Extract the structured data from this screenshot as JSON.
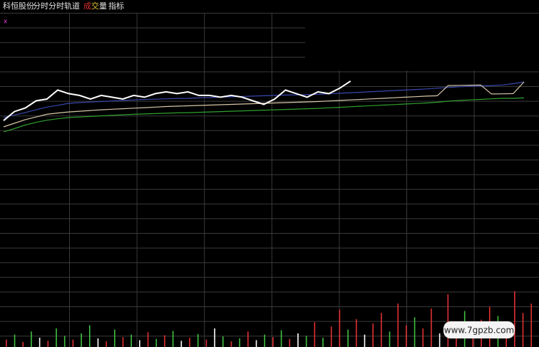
{
  "header": {
    "stock": "科恒股份",
    "tabs": [
      "分时",
      "分时轨道"
    ],
    "volume_tab": [
      "成",
      "交",
      "量"
    ],
    "indicator_tab": "指标",
    "marker": "x",
    "watermark": "www.7gpzb.com"
  },
  "chart_data": [
    {
      "type": "line",
      "x": [
        0,
        1,
        2,
        3,
        4,
        5,
        6,
        7,
        8,
        9,
        10,
        11,
        12,
        13,
        14,
        15,
        16,
        17,
        18,
        19,
        20,
        21,
        22,
        23,
        24,
        25,
        26,
        27,
        28,
        29,
        30,
        31,
        32,
        33,
        34,
        35,
        36,
        37,
        38,
        39,
        40,
        41,
        42,
        43,
        44,
        45,
        46,
        47,
        48
      ],
      "xlim": [
        0,
        48
      ],
      "ylim": [
        0,
        100
      ],
      "series": [
        {
          "name": "分时轨道上轨",
          "color": "#3848b0",
          "values": [
            41.7,
            43,
            44.5,
            46,
            47.5,
            48.5,
            49.6,
            50,
            50.3,
            50.6,
            50.9,
            51.2,
            51.5,
            51.7,
            51.9,
            52.1,
            52.3,
            52.4,
            52.6,
            52.8,
            53,
            53.2,
            53.4,
            53.6,
            53.8,
            54,
            54.2,
            54.3,
            54.4,
            54.6,
            54.9,
            55.2,
            55.5,
            55.8,
            56.1,
            56.4,
            56.7,
            57,
            57.3,
            57.6,
            58,
            58.4,
            58.8,
            59.1,
            59.3,
            59.5,
            59.8,
            60.5,
            61.5
          ]
        },
        {
          "name": "分时轨道中轨",
          "color": "#d8c8a8",
          "values": [
            36.5,
            38.5,
            40.5,
            42,
            43.5,
            44.2,
            44.8,
            45.2,
            45.6,
            46,
            46.3,
            46.6,
            46.9,
            47.2,
            47.5,
            47.8,
            48,
            48.2,
            48.4,
            48.6,
            48.8,
            49,
            49.2,
            49.4,
            49.6,
            49.8,
            50,
            50.2,
            50.4,
            50.6,
            50.9,
            51.2,
            51.5,
            51.8,
            52.1,
            52.4,
            52.7,
            53,
            53.3,
            53.6,
            53.8,
            59.5,
            59.6,
            59.7,
            59.8,
            54.8,
            54.9,
            55,
            61.5
          ]
        },
        {
          "name": "分时轨道下轨",
          "color": "#30a030",
          "values": [
            33.7,
            35.5,
            37.5,
            39,
            40.2,
            41,
            41.7,
            42,
            42.3,
            42.6,
            42.9,
            43.2,
            43.5,
            43.7,
            43.9,
            44.1,
            44.3,
            44.4,
            44.6,
            44.8,
            45,
            45.2,
            45.4,
            45.6,
            45.8,
            46,
            46.2,
            46.4,
            46.6,
            46.8,
            47.1,
            47.4,
            47.7,
            48,
            48.3,
            48.6,
            48.9,
            49.2,
            49.5,
            49.8,
            50.2,
            50.8,
            51.2,
            51.5,
            51.8,
            52.1,
            52.4,
            52.4,
            52.6
          ]
        },
        {
          "name": "分时",
          "color": "#ffffff",
          "values": [
            40,
            45,
            47,
            51,
            52,
            57,
            55,
            54,
            52,
            54,
            53,
            52,
            54,
            53,
            55,
            56,
            55,
            56,
            54,
            54,
            53,
            54,
            53,
            51,
            49,
            52,
            57,
            55,
            53,
            56,
            55,
            58,
            62,
            null,
            null,
            null,
            null,
            null,
            null,
            null,
            null,
            null,
            null,
            null,
            null,
            null,
            null,
            null,
            null
          ]
        }
      ]
    },
    {
      "type": "bar",
      "ylim": [
        0,
        100
      ],
      "values": [
        12,
        20,
        8,
        25,
        15,
        10,
        30,
        18,
        12,
        22,
        35,
        14,
        9,
        28,
        16,
        20,
        11,
        24,
        13,
        19,
        26,
        10,
        15,
        21,
        12,
        30,
        17,
        9,
        14,
        25,
        11,
        20,
        16,
        27,
        13,
        22,
        18,
        40,
        15,
        33,
        60,
        28,
        45,
        20,
        38,
        55,
        25,
        70,
        35,
        48,
        30,
        62,
        22,
        85,
        40,
        58,
        30,
        44,
        65,
        50,
        36,
        90,
        55,
        70
      ],
      "colors": [
        "#e03030",
        "#40c040",
        "#e03030",
        "#40c040",
        "#ffffff",
        "#e03030",
        "#40c040",
        "#40c040",
        "#e03030",
        "#40c040",
        "#40c040",
        "#ffffff",
        "#e03030",
        "#40c040",
        "#e03030",
        "#40c040",
        "#ffffff",
        "#e03030",
        "#40c040",
        "#e03030",
        "#40c040",
        "#ffffff",
        "#e03030",
        "#40c040",
        "#e03030",
        "#ffffff",
        "#40c040",
        "#e03030",
        "#40c040",
        "#e03030",
        "#ffffff",
        "#40c040",
        "#e03030",
        "#40c040",
        "#e03030",
        "#ffffff",
        "#40c040",
        "#e03030",
        "#40c040",
        "#e03030",
        "#e03030",
        "#40c040",
        "#e03030",
        "#ffffff",
        "#e03030",
        "#e03030",
        "#40c040",
        "#e03030",
        "#e03030",
        "#40c040",
        "#e03030",
        "#e03030",
        "#ffffff",
        "#e03030",
        "#e03030",
        "#40c040",
        "#e03030",
        "#e03030",
        "#e03030",
        "#40c040",
        "#e03030",
        "#e03030",
        "#e03030",
        "#e03030"
      ]
    }
  ]
}
